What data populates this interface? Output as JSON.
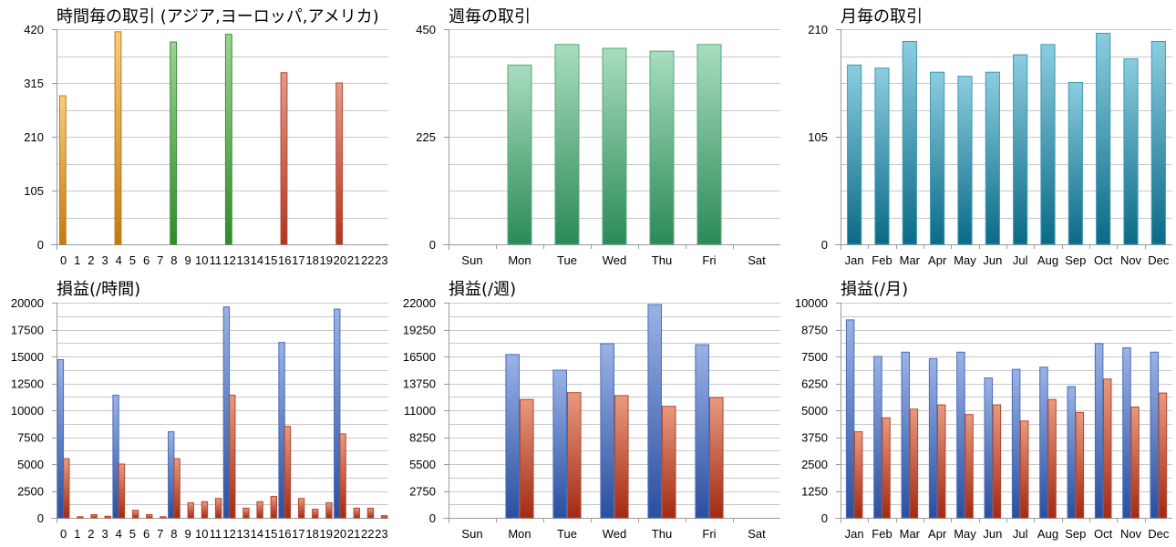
{
  "palettes": {
    "hour": [
      {
        "top": "#f7cd7e",
        "bottom": "#c47a10",
        "stroke": "#c07a15"
      },
      {
        "top": "#9cd491",
        "bottom": "#2f8a2b",
        "stroke": "#3b8a36"
      },
      {
        "top": "#e59a8a",
        "bottom": "#b23520",
        "stroke": "#b24a38"
      }
    ],
    "week": {
      "top": "#a8ddc0",
      "bottom": "#2b8a57",
      "stroke": "#5aa67a"
    },
    "month": {
      "top": "#8ccde0",
      "bottom": "#0a6a86",
      "stroke": "#3d97b3"
    },
    "blue": {
      "top": "#9ab3e6",
      "bottom": "#2a4fa0",
      "stroke": "#4a6bb8"
    },
    "red": {
      "top": "#e89a7f",
      "bottom": "#a22a12",
      "stroke": "#b5462e"
    },
    "axis": "#9a9a9a",
    "grid": "#c8c8c8"
  },
  "chart_data": [
    {
      "id": "hourly-trades",
      "type": "bar",
      "title": "時間毎の取引 (アジア,ヨーロッパ,アメリカ)",
      "categories": [
        "0",
        "1",
        "2",
        "3",
        "4",
        "5",
        "6",
        "7",
        "8",
        "9",
        "10",
        "11",
        "12",
        "13",
        "14",
        "15",
        "16",
        "17",
        "18",
        "19",
        "20",
        "21",
        "22",
        "23"
      ],
      "values": [
        290,
        0,
        0,
        0,
        415,
        0,
        0,
        0,
        395,
        0,
        0,
        0,
        410,
        0,
        0,
        0,
        335,
        0,
        0,
        0,
        315,
        0,
        0,
        0
      ],
      "ylim": [
        0,
        420
      ],
      "yticks": [
        0,
        105,
        210,
        315,
        420
      ],
      "bar_palette_index": [
        0,
        0,
        0,
        0,
        0,
        0,
        0,
        0,
        1,
        1,
        1,
        1,
        1,
        1,
        1,
        1,
        2,
        2,
        2,
        2,
        2,
        2,
        2,
        2
      ],
      "grid": true
    },
    {
      "id": "weekly-trades",
      "type": "bar",
      "title": "週毎の取引",
      "categories": [
        "Sun",
        "Mon",
        "Tue",
        "Wed",
        "Thu",
        "Fri",
        "Sat"
      ],
      "values": [
        0,
        375,
        418,
        410,
        404,
        418,
        0
      ],
      "ylim": [
        0,
        450
      ],
      "yticks": [
        0,
        225,
        450
      ],
      "grid": true
    },
    {
      "id": "monthly-trades",
      "type": "bar",
      "title": "月毎の取引",
      "categories": [
        "Jan",
        "Feb",
        "Mar",
        "Apr",
        "May",
        "Jun",
        "Jul",
        "Aug",
        "Sep",
        "Oct",
        "Nov",
        "Dec"
      ],
      "values": [
        175,
        172,
        198,
        168,
        164,
        168,
        185,
        195,
        158,
        206,
        181,
        198
      ],
      "ylim": [
        0,
        210
      ],
      "yticks": [
        0,
        105,
        210
      ],
      "grid": true
    },
    {
      "id": "hourly-pnl",
      "type": "bar",
      "title": "損益(/時間)",
      "categories": [
        "0",
        "1",
        "2",
        "3",
        "4",
        "5",
        "6",
        "7",
        "8",
        "9",
        "10",
        "11",
        "12",
        "13",
        "14",
        "15",
        "16",
        "17",
        "18",
        "19",
        "20",
        "21",
        "22",
        "23"
      ],
      "series": [
        {
          "values": [
            14700,
            0,
            0,
            0,
            11400,
            0,
            0,
            0,
            8000,
            0,
            0,
            0,
            19600,
            0,
            0,
            0,
            16300,
            0,
            0,
            0,
            19400,
            0,
            0,
            0
          ]
        },
        {
          "values": [
            5500,
            100,
            300,
            150,
            5000,
            700,
            300,
            100,
            5500,
            1400,
            1500,
            1800,
            11400,
            900,
            1500,
            2000,
            8500,
            1800,
            800,
            1400,
            7800,
            900,
            900,
            200
          ]
        }
      ],
      "ylim": [
        0,
        20000
      ],
      "yticks": [
        0,
        2500,
        5000,
        7500,
        10000,
        12500,
        15000,
        17500,
        20000
      ],
      "grid": true
    },
    {
      "id": "weekly-pnl",
      "type": "bar",
      "title": "損益(/週)",
      "categories": [
        "Sun",
        "Mon",
        "Tue",
        "Wed",
        "Thu",
        "Fri",
        "Sat"
      ],
      "series": [
        {
          "values": [
            0,
            16700,
            15100,
            17800,
            21800,
            17700,
            0
          ]
        },
        {
          "values": [
            0,
            12100,
            12800,
            12500,
            11400,
            12300,
            0
          ]
        }
      ],
      "ylim": [
        0,
        22000
      ],
      "yticks": [
        0,
        2750,
        5500,
        8250,
        11000,
        13750,
        16500,
        19250,
        22000
      ],
      "grid": true
    },
    {
      "id": "monthly-pnl",
      "type": "bar",
      "title": "損益(/月)",
      "categories": [
        "Jan",
        "Feb",
        "Mar",
        "Apr",
        "May",
        "Jun",
        "Jul",
        "Aug",
        "Sep",
        "Oct",
        "Nov",
        "Dec"
      ],
      "series": [
        {
          "values": [
            9200,
            7500,
            7700,
            7400,
            7700,
            6500,
            6900,
            7000,
            6100,
            8100,
            7900,
            7700
          ]
        },
        {
          "values": [
            4000,
            4650,
            5050,
            5250,
            4800,
            5250,
            4500,
            5500,
            4900,
            6450,
            5150,
            5800
          ]
        }
      ],
      "ylim": [
        0,
        10000
      ],
      "yticks": [
        0,
        1250,
        2500,
        3750,
        5000,
        6250,
        7500,
        8750,
        10000
      ],
      "grid": true
    }
  ]
}
